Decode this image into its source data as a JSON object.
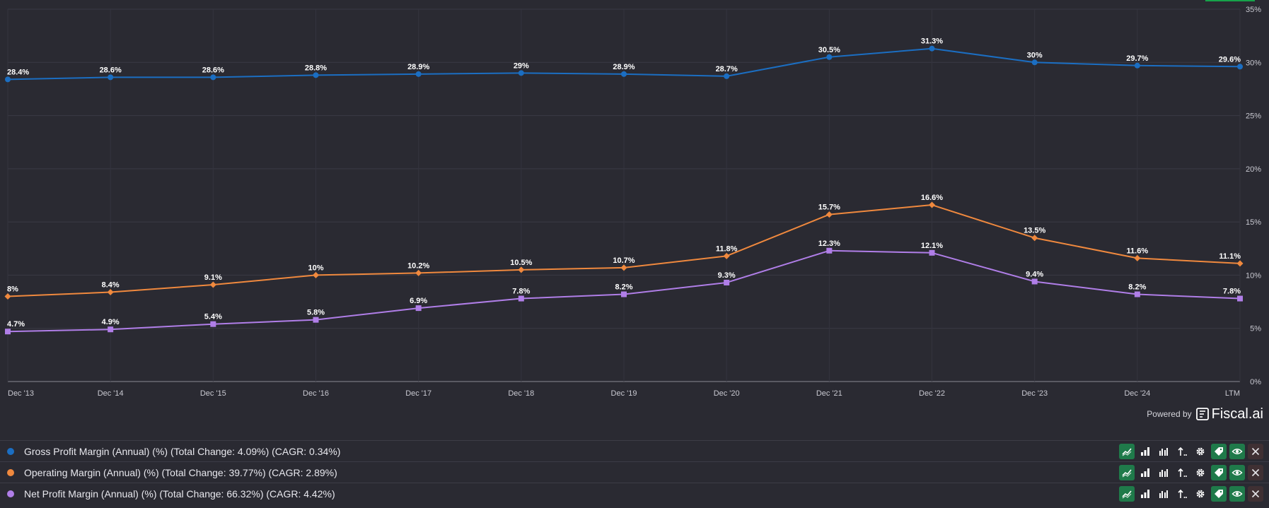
{
  "chart_data": {
    "type": "line",
    "categories": [
      "Dec '13",
      "Dec '14",
      "Dec '15",
      "Dec '16",
      "Dec '17",
      "Dec '18",
      "Dec '19",
      "Dec '20",
      "Dec '21",
      "Dec '22",
      "Dec '23",
      "Dec '24",
      "LTM"
    ],
    "ylim": [
      0,
      35
    ],
    "yticks": [
      0,
      5,
      10,
      15,
      20,
      25,
      30,
      35
    ],
    "ytick_labels": [
      "0%",
      "5%",
      "10%",
      "15%",
      "20%",
      "25%",
      "30%",
      "35%"
    ],
    "grid": true,
    "y_axis_side": "right",
    "series": [
      {
        "key": "gross",
        "color": "#1b6ec2",
        "marker": "circle",
        "values": [
          28.4,
          28.6,
          28.6,
          28.8,
          28.9,
          29,
          28.9,
          28.7,
          30.5,
          31.3,
          30,
          29.7,
          29.6
        ],
        "labels": [
          "28.4%",
          "28.6%",
          "28.6%",
          "28.8%",
          "28.9%",
          "29%",
          "28.9%",
          "28.7%",
          "30.5%",
          "31.3%",
          "30%",
          "29.7%",
          "29.6%"
        ]
      },
      {
        "key": "operating",
        "color": "#f0893e",
        "marker": "diamond",
        "values": [
          8,
          8.4,
          9.1,
          10,
          10.2,
          10.5,
          10.7,
          11.8,
          15.7,
          16.6,
          13.5,
          11.6,
          11.1
        ],
        "labels": [
          "8%",
          "8.4%",
          "9.1%",
          "10%",
          "10.2%",
          "10.5%",
          "10.7%",
          "11.8%",
          "15.7%",
          "16.6%",
          "13.5%",
          "11.6%",
          "11.1%"
        ]
      },
      {
        "key": "net",
        "color": "#b07ee8",
        "marker": "square",
        "values": [
          4.7,
          4.9,
          5.4,
          5.8,
          6.9,
          7.8,
          8.2,
          9.3,
          12.3,
          12.1,
          9.4,
          8.2,
          7.8
        ],
        "labels": [
          "4.7%",
          "4.9%",
          "5.4%",
          "5.8%",
          "6.9%",
          "7.8%",
          "8.2%",
          "9.3%",
          "12.3%",
          "12.1%",
          "9.4%",
          "8.2%",
          "7.8%"
        ]
      }
    ]
  },
  "branding": {
    "powered_by": "Powered by",
    "brand_name": "Fiscal.ai"
  },
  "legend": [
    {
      "label": "Gross Profit Margin (Annual) (%) (Total Change: 4.09%) (CAGR: 0.34%)",
      "color": "#1b6ec2"
    },
    {
      "label": "Operating Margin (Annual) (%) (Total Change: 39.77%) (CAGR: 2.89%)",
      "color": "#f0893e"
    },
    {
      "label": "Net Profit Margin (Annual) (%) (Total Change: 66.32%) (CAGR: 4.42%)",
      "color": "#b07ee8"
    }
  ],
  "toolbar_icons": [
    "line-chart-icon",
    "bar-chart-icon",
    "grouped-bar-icon",
    "sort-icon",
    "gear-icon",
    "tag-icon",
    "eye-icon",
    "close-icon"
  ]
}
